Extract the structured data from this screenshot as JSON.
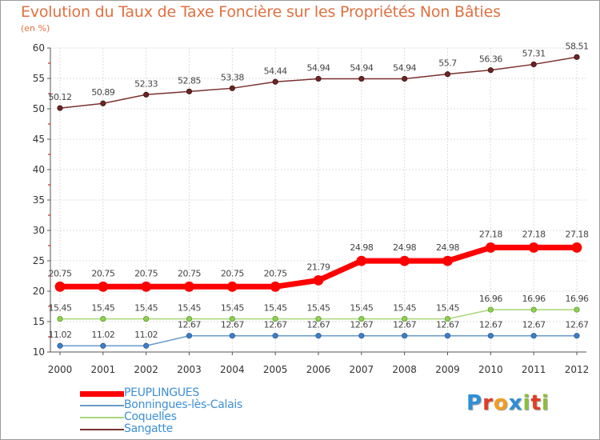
{
  "title": "Evolution du Taux de Taxe Foncière sur les Propriétés Non Bâties",
  "unit": "(en %)",
  "logo": {
    "letters": [
      "P",
      "r",
      "o",
      "x",
      "i",
      "t",
      "i"
    ],
    "colors": [
      "#2c8fd8",
      "#e23c24",
      "#f39c1e",
      "#2c8fd8",
      "#8cbe3c",
      "#e23c24",
      "#8cbe3c"
    ]
  },
  "chart_data": {
    "type": "line",
    "title": "Evolution du Taux de Taxe Foncière sur les Propriétés Non Bâties",
    "ylabel": "(en %)",
    "xlabel": "",
    "ylim": [
      10,
      60
    ],
    "yticks": [
      10,
      15,
      20,
      25,
      30,
      35,
      40,
      45,
      50,
      55,
      60
    ],
    "x": [
      "2000",
      "2001",
      "2002",
      "2003",
      "2004",
      "2005",
      "2006",
      "2007",
      "2008",
      "2009",
      "2010",
      "2011",
      "2012"
    ],
    "grid": true,
    "series": [
      {
        "name": "PEUPLINGUES",
        "color": "#ff0000",
        "values": [
          20.75,
          20.75,
          20.75,
          20.75,
          20.75,
          20.75,
          21.79,
          24.98,
          24.98,
          24.98,
          27.18,
          27.18,
          27.18
        ],
        "labels": [
          "20.75",
          "20.75",
          "20.75",
          "20.75",
          "20.75",
          "20.75",
          "21.79",
          "24.98",
          "24.98",
          "24.98",
          "27.18",
          "27.18",
          "27.18"
        ]
      },
      {
        "name": "Bonningues-lès-Calais",
        "color": "#6a9ac8",
        "values": [
          11.02,
          11.02,
          11.02,
          12.67,
          12.67,
          12.67,
          12.67,
          12.67,
          12.67,
          12.67,
          12.67,
          12.67,
          12.67
        ],
        "labels": [
          "11.02",
          "11.02",
          "11.02",
          "12.67",
          "12.67",
          "12.67",
          "12.67",
          "12.67",
          "12.67",
          "12.67",
          "12.67",
          "12.67",
          "12.67"
        ]
      },
      {
        "name": "Coquelles",
        "color": "#a8d878",
        "values": [
          15.45,
          15.45,
          15.45,
          15.45,
          15.45,
          15.45,
          15.45,
          15.45,
          15.45,
          15.45,
          16.96,
          16.96,
          16.96
        ],
        "labels": [
          "15.45",
          "15.45",
          "15.45",
          "15.45",
          "15.45",
          "15.45",
          "15.45",
          "15.45",
          "15.45",
          "15.45",
          "16.96",
          "16.96",
          "16.96"
        ]
      },
      {
        "name": "Sangatte",
        "color": "#7a3030",
        "values": [
          50.12,
          50.89,
          52.33,
          52.85,
          53.38,
          54.44,
          54.94,
          54.94,
          54.94,
          55.7,
          56.36,
          57.31,
          58.51
        ],
        "labels": [
          "50.12",
          "50.89",
          "52.33",
          "52.85",
          "53.38",
          "54.44",
          "54.94",
          "54.94",
          "54.94",
          "55.7",
          "56.36",
          "57.31",
          "58.51"
        ]
      }
    ]
  }
}
